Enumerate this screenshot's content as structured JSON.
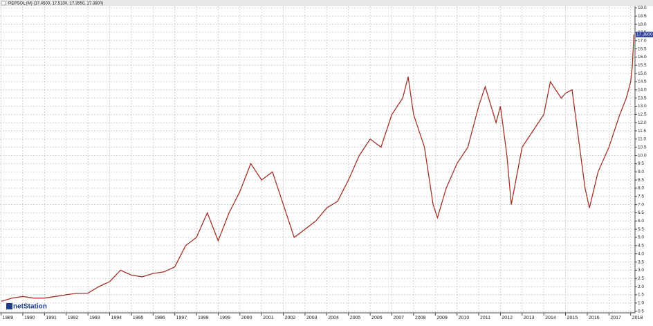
{
  "chart_data": {
    "type": "line",
    "title": "REPSOL (M) (17.4500, 17.5100, 17.3550, 17.3800)",
    "logo": "netStation",
    "last_price_label": "17.3800",
    "color": "#a0322a",
    "x": [
      1989.0,
      1989.5,
      1990.0,
      1990.5,
      1991.0,
      1991.5,
      1992.0,
      1992.5,
      1993.0,
      1993.5,
      1994.0,
      1994.5,
      1995.0,
      1995.5,
      1996.0,
      1996.5,
      1997.0,
      1997.5,
      1998.0,
      1998.5,
      1999.0,
      1999.5,
      2000.0,
      2000.5,
      2001.0,
      2001.5,
      2002.0,
      2002.5,
      2003.0,
      2003.5,
      2004.0,
      2004.5,
      2005.0,
      2005.5,
      2006.0,
      2006.5,
      2007.0,
      2007.5,
      2007.75,
      2008.0,
      2008.5,
      2008.9,
      2009.1,
      2009.5,
      2010.0,
      2010.5,
      2011.0,
      2011.3,
      2011.8,
      2012.0,
      2012.3,
      2012.5,
      2013.0,
      2013.5,
      2014.0,
      2014.3,
      2014.8,
      2015.0,
      2015.3,
      2015.6,
      2015.9,
      2016.1,
      2016.5,
      2017.0,
      2017.5,
      2017.8,
      2018.0,
      2018.08,
      2018.15
    ],
    "values": [
      1.1,
      1.3,
      1.4,
      1.3,
      1.3,
      1.4,
      1.5,
      1.6,
      1.6,
      2.0,
      2.3,
      3.0,
      2.7,
      2.6,
      2.8,
      2.9,
      3.2,
      4.5,
      5.0,
      6.5,
      4.8,
      6.5,
      7.8,
      9.5,
      8.5,
      9.0,
      7.0,
      5.0,
      5.5,
      6.0,
      6.8,
      7.2,
      8.5,
      10.0,
      11.0,
      10.5,
      12.5,
      13.5,
      14.8,
      12.5,
      10.5,
      7.0,
      6.2,
      8.0,
      9.5,
      10.5,
      13.0,
      14.2,
      12.0,
      13.0,
      10.0,
      7.0,
      10.5,
      11.5,
      12.5,
      14.5,
      13.5,
      13.8,
      14.0,
      11.0,
      8.0,
      6.8,
      9.0,
      10.5,
      12.5,
      13.5,
      14.5,
      15.5,
      17.38
    ],
    "xlim": [
      1988.95,
      2018.2
    ],
    "xticks": [
      1989,
      1990,
      1991,
      1992,
      1993,
      1994,
      1995,
      1996,
      1997,
      1998,
      1999,
      2000,
      2001,
      2002,
      2003,
      2004,
      2005,
      2006,
      2007,
      2008,
      2009,
      2010,
      2011,
      2012,
      2013,
      2014,
      2015,
      2016,
      2017,
      2018
    ],
    "ylim": [
      0.4,
      19.1
    ],
    "yticks": [
      {
        "value": 0.5,
        "label": "0.5"
      },
      {
        "value": 1,
        "label": "1.0"
      },
      {
        "value": 1.5,
        "label": "1.5"
      },
      {
        "value": 2,
        "label": "2.0"
      },
      {
        "value": 2.5,
        "label": "2.5"
      },
      {
        "value": 3,
        "label": "3.0"
      },
      {
        "value": 3.5,
        "label": "3.5"
      },
      {
        "value": 4,
        "label": "4.0"
      },
      {
        "value": 4.5,
        "label": "4.5"
      },
      {
        "value": 5,
        "label": "5.0"
      },
      {
        "value": 5.5,
        "label": "5.5"
      },
      {
        "value": 6,
        "label": "6.0"
      },
      {
        "value": 6.5,
        "label": "6.5"
      },
      {
        "value": 7,
        "label": "7.0"
      },
      {
        "value": 7.5,
        "label": "7.5"
      },
      {
        "value": 8,
        "label": "8.0"
      },
      {
        "value": 8.5,
        "label": "8.5"
      },
      {
        "value": 9,
        "label": "9.0"
      },
      {
        "value": 9.5,
        "label": "9.5"
      },
      {
        "value": 10,
        "label": "10.0"
      },
      {
        "value": 10.5,
        "label": "10.5"
      },
      {
        "value": 11,
        "label": "11.0"
      },
      {
        "value": 11.5,
        "label": "11.5"
      },
      {
        "value": 12,
        "label": "12.0"
      },
      {
        "value": 12.5,
        "label": "12.5"
      },
      {
        "value": 13,
        "label": "13.0"
      },
      {
        "value": 13.5,
        "label": "13.5"
      },
      {
        "value": 14,
        "label": "14.0"
      },
      {
        "value": 14.5,
        "label": "14.5"
      },
      {
        "value": 15,
        "label": "15.0"
      },
      {
        "value": 15.5,
        "label": "15.5"
      },
      {
        "value": 16,
        "label": "16.0"
      },
      {
        "value": 16.5,
        "label": "16.5"
      },
      {
        "value": 17,
        "label": "17.0"
      },
      {
        "value": 17.5,
        "label": "17.5"
      },
      {
        "value": 18,
        "label": "18.0"
      },
      {
        "value": 18.5,
        "label": "18.5"
      },
      {
        "value": 19,
        "label": "19.0"
      }
    ],
    "grid": true
  }
}
